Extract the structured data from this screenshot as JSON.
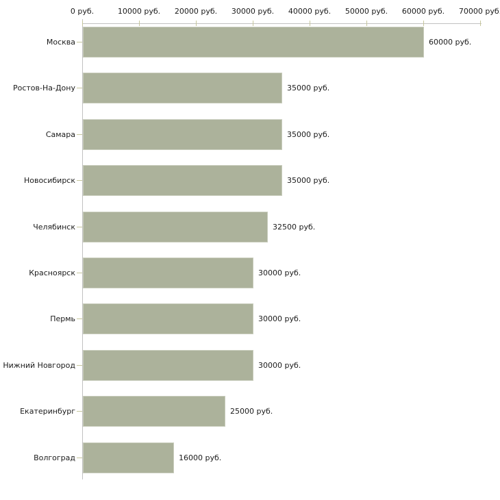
{
  "chart": {
    "bar_color": "#acb29b",
    "bar_border_color": "#c9cdbd",
    "axis_line_color": "#c1c1c1",
    "tick_mark_color": "#c6c69c",
    "text_color": "#1a1a1a",
    "background_color": "#ffffff"
  },
  "chart_data": {
    "type": "bar",
    "orientation": "horizontal",
    "title": "",
    "xlabel": "",
    "ylabel": "",
    "grid": "off",
    "legend": "none",
    "categories": [
      "Москва",
      "Ростов-На-Дону",
      "Самара",
      "Новосибирск",
      "Челябинск",
      "Красноярск",
      "Пермь",
      "Нижний Новгород",
      "Екатеринбург",
      "Волгоград"
    ],
    "values": [
      60000,
      35000,
      35000,
      35000,
      32500,
      30000,
      30000,
      30000,
      25000,
      16000
    ],
    "value_labels": [
      "60000 руб.",
      "35000 руб.",
      "35000 руб.",
      "35000 руб.",
      "32500 руб.",
      "30000 руб.",
      "30000 руб.",
      "30000 руб.",
      "25000 руб.",
      "16000 руб."
    ],
    "x_ticks": [
      0,
      10000,
      20000,
      30000,
      40000,
      50000,
      60000,
      70000
    ],
    "x_tick_labels": [
      "0 руб.",
      "10000 руб.",
      "20000 руб.",
      "30000 руб.",
      "40000 руб.",
      "50000 руб.",
      "60000 руб.",
      "70000 руб."
    ],
    "xlim": [
      0,
      70000
    ],
    "currency_suffix": "руб."
  }
}
